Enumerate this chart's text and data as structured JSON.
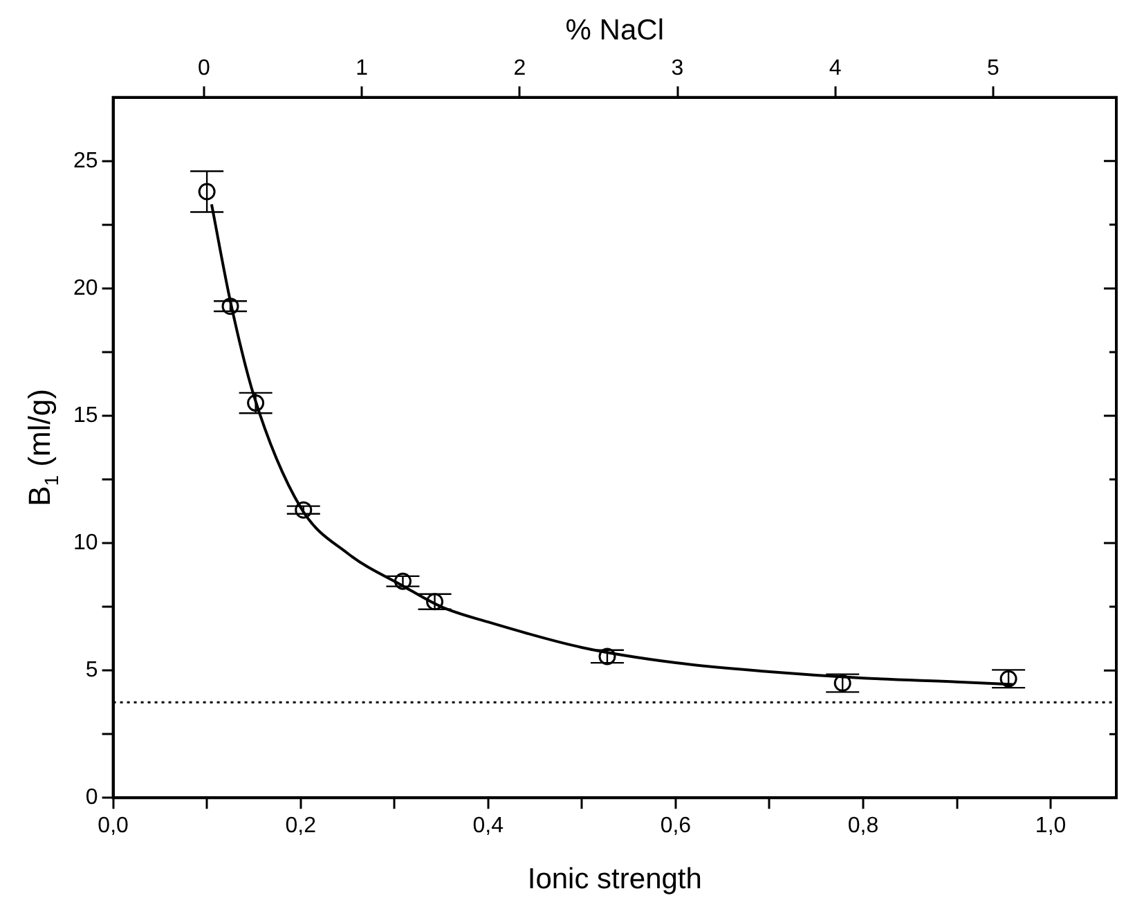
{
  "chart_data": {
    "type": "scatter",
    "xlabel": "Ionic strength",
    "ylabel": "B$_{1}$ (ml/g)",
    "x2label": "% NaCl",
    "xlim": [
      0,
      1.07
    ],
    "xticks": [
      {
        "value": 0,
        "label": "0,0"
      },
      {
        "value": 0.1,
        "label": null
      },
      {
        "value": 0.2,
        "label": "0,2"
      },
      {
        "value": 0.3,
        "label": null
      },
      {
        "value": 0.4,
        "label": "0,4"
      },
      {
        "value": 0.5,
        "label": null
      },
      {
        "value": 0.6,
        "label": "0,6"
      },
      {
        "value": 0.7,
        "label": null
      },
      {
        "value": 0.8,
        "label": "0,8"
      },
      {
        "value": 0.9,
        "label": null
      },
      {
        "value": 1.0,
        "label": "1,0"
      }
    ],
    "x2lim": [
      -0.575,
      5.78
    ],
    "x2ticks": [
      0,
      1,
      2,
      3,
      4,
      5
    ],
    "ylim": [
      0,
      27.5
    ],
    "yticks": [
      0,
      {
        "value": 2.5,
        "label": null
      },
      5,
      {
        "value": 7.5,
        "label": null
      },
      10,
      {
        "value": 12.5,
        "label": null
      },
      15,
      {
        "value": 17.5,
        "label": null
      },
      20,
      {
        "value": 22.5,
        "label": null
      },
      25
    ],
    "grid": false,
    "legend": false,
    "series": [
      {
        "type": "scatter",
        "color": "#000000",
        "marker": "circle",
        "x": [
          0.1,
          0.125,
          0.152,
          0.203,
          0.309,
          0.343,
          0.527,
          0.778,
          0.955
        ],
        "values": [
          23.8,
          19.3,
          15.5,
          11.3,
          8.5,
          7.7,
          5.55,
          4.5,
          4.67
        ],
        "errors": [
          0.8,
          0.2,
          0.4,
          0.15,
          0.2,
          0.3,
          0.25,
          0.35,
          0.35
        ]
      },
      {
        "type": "line",
        "color": "#000000",
        "marker": "none",
        "line_style": "solid",
        "x": [
          0.105,
          0.125,
          0.15,
          0.2,
          0.25,
          0.31,
          0.35,
          0.4,
          0.5,
          0.6,
          0.7,
          0.8,
          0.9,
          0.96
        ],
        "values": [
          23.3,
          19.5,
          15.8,
          11.4,
          9.6,
          8.3,
          7.5,
          6.9,
          5.9,
          5.3,
          4.95,
          4.7,
          4.55,
          4.45
        ]
      }
    ],
    "ref_lines": [
      {
        "axis": "y",
        "value": 3.75,
        "color": "#000000",
        "line_style": "dotted"
      }
    ]
  }
}
